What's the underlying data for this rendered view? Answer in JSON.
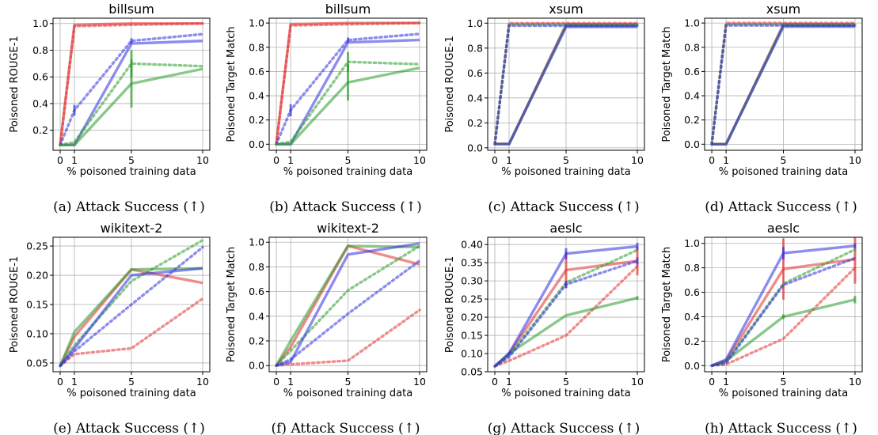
{
  "chart_data": [
    {
      "type": "line",
      "title": "billsum",
      "xlabel": "% poisoned training data",
      "ylabel": "Poisoned ROUGE-1",
      "caption": "(a) Attack Success (↑)",
      "xlim": [
        -0.5,
        10.5
      ],
      "ylim": [
        0.05,
        1.04
      ],
      "x_ticks": [
        0,
        1,
        5,
        10
      ],
      "y_ticks": [
        0.2,
        0.4,
        0.6,
        0.8,
        1.0
      ],
      "y_tick_labels": [
        "0.2",
        "0.4",
        "0.6",
        "0.8",
        "1.0"
      ],
      "grid": true,
      "series": [
        {
          "color": "#e03030",
          "style": "solid",
          "x": [
            0,
            1,
            5,
            10
          ],
          "y": [
            0.09,
            0.99,
            1.0,
            1.0
          ]
        },
        {
          "color": "#e03030",
          "style": "dotted",
          "x": [
            0,
            1,
            5,
            10
          ],
          "y": [
            0.09,
            0.98,
            0.99,
            1.0
          ]
        },
        {
          "color": "#3030e0",
          "style": "solid",
          "x": [
            0,
            1,
            5,
            10
          ],
          "y": [
            0.09,
            0.09,
            0.85,
            0.87
          ]
        },
        {
          "color": "#3030e0",
          "style": "dotted",
          "x": [
            0,
            1,
            5,
            10
          ],
          "y": [
            0.09,
            0.35,
            0.87,
            0.92
          ],
          "err": [
            0,
            0.04,
            0.02,
            0
          ]
        },
        {
          "color": "#2a9a2a",
          "style": "solid",
          "x": [
            0,
            1,
            5,
            10
          ],
          "y": [
            0.09,
            0.09,
            0.55,
            0.66
          ],
          "err": [
            0,
            0,
            0.18,
            0
          ]
        },
        {
          "color": "#2a9a2a",
          "style": "dotted",
          "x": [
            0,
            1,
            5,
            10
          ],
          "y": [
            0.09,
            0.11,
            0.7,
            0.68
          ],
          "err": [
            0,
            0,
            0.1,
            0
          ]
        }
      ]
    },
    {
      "type": "line",
      "title": "billsum",
      "xlabel": "% poisoned training data",
      "ylabel": "Poisoned Target Match",
      "caption": "(b) Attack Success (↑)",
      "xlim": [
        -0.5,
        10.5
      ],
      "ylim": [
        -0.05,
        1.04
      ],
      "x_ticks": [
        0,
        1,
        5,
        10
      ],
      "y_ticks": [
        0.0,
        0.2,
        0.4,
        0.6,
        0.8,
        1.0
      ],
      "y_tick_labels": [
        "0.0",
        "0.2",
        "0.4",
        "0.6",
        "0.8",
        "1.0"
      ],
      "grid": true,
      "series": [
        {
          "color": "#e03030",
          "style": "solid",
          "x": [
            0,
            1,
            5,
            10
          ],
          "y": [
            0.0,
            0.99,
            1.0,
            1.0
          ]
        },
        {
          "color": "#e03030",
          "style": "dotted",
          "x": [
            0,
            1,
            5,
            10
          ],
          "y": [
            0.0,
            0.98,
            0.99,
            1.0
          ]
        },
        {
          "color": "#3030e0",
          "style": "solid",
          "x": [
            0,
            1,
            5,
            10
          ],
          "y": [
            0.0,
            0.0,
            0.84,
            0.86
          ]
        },
        {
          "color": "#3030e0",
          "style": "dotted",
          "x": [
            0,
            1,
            5,
            10
          ],
          "y": [
            0.0,
            0.28,
            0.86,
            0.91
          ],
          "err": [
            0,
            0.05,
            0.02,
            0
          ]
        },
        {
          "color": "#2a9a2a",
          "style": "solid",
          "x": [
            0,
            1,
            5,
            10
          ],
          "y": [
            0.0,
            0.0,
            0.51,
            0.63
          ],
          "err": [
            0,
            0,
            0.15,
            0
          ]
        },
        {
          "color": "#2a9a2a",
          "style": "dotted",
          "x": [
            0,
            1,
            5,
            10
          ],
          "y": [
            0.0,
            0.02,
            0.68,
            0.66
          ],
          "err": [
            0,
            0,
            0.08,
            0
          ]
        }
      ]
    },
    {
      "type": "line",
      "title": "xsum",
      "xlabel": "% poisoned training data",
      "ylabel": "Poisoned ROUGE-1",
      "caption": "(c) Attack Success (↑)",
      "xlim": [
        -0.5,
        10.5
      ],
      "ylim": [
        -0.02,
        1.04
      ],
      "x_ticks": [
        0,
        1,
        5,
        10
      ],
      "y_ticks": [
        0.0,
        0.2,
        0.4,
        0.6,
        0.8,
        1.0
      ],
      "y_tick_labels": [
        "0.0",
        "0.2",
        "0.4",
        "0.6",
        "0.8",
        "1.0"
      ],
      "grid": true,
      "series": [
        {
          "color": "#e03030",
          "style": "solid",
          "x": [
            0,
            1,
            5,
            10
          ],
          "y": [
            0.03,
            0.03,
            0.99,
            0.99
          ]
        },
        {
          "color": "#e03030",
          "style": "dotted",
          "x": [
            0,
            1,
            5,
            10
          ],
          "y": [
            0.03,
            1.0,
            1.0,
            1.0
          ]
        },
        {
          "color": "#2a9a2a",
          "style": "solid",
          "x": [
            0,
            1,
            5,
            10
          ],
          "y": [
            0.03,
            0.03,
            0.98,
            0.98
          ]
        },
        {
          "color": "#2a9a2a",
          "style": "dotted",
          "x": [
            0,
            1,
            5,
            10
          ],
          "y": [
            0.03,
            0.99,
            0.99,
            0.99
          ]
        },
        {
          "color": "#3030e0",
          "style": "solid",
          "x": [
            0,
            1,
            5,
            10
          ],
          "y": [
            0.03,
            0.03,
            0.97,
            0.97
          ]
        },
        {
          "color": "#3030e0",
          "style": "dotted",
          "x": [
            0,
            1,
            5,
            10
          ],
          "y": [
            0.03,
            0.98,
            0.98,
            0.98
          ]
        }
      ]
    },
    {
      "type": "line",
      "title": "xsum",
      "xlabel": "% poisoned training data",
      "ylabel": "Poisoned Target Match",
      "caption": "(d) Attack Success (↑)",
      "xlim": [
        -0.5,
        10.5
      ],
      "ylim": [
        -0.05,
        1.04
      ],
      "x_ticks": [
        0,
        1,
        5,
        10
      ],
      "y_ticks": [
        0.0,
        0.2,
        0.4,
        0.6,
        0.8,
        1.0
      ],
      "y_tick_labels": [
        "0.0",
        "0.2",
        "0.4",
        "0.6",
        "0.8",
        "1.0"
      ],
      "grid": true,
      "series": [
        {
          "color": "#e03030",
          "style": "solid",
          "x": [
            0,
            1,
            5,
            10
          ],
          "y": [
            0.0,
            0.0,
            0.99,
            0.99
          ]
        },
        {
          "color": "#e03030",
          "style": "dotted",
          "x": [
            0,
            1,
            5,
            10
          ],
          "y": [
            0.0,
            1.0,
            1.0,
            1.0
          ]
        },
        {
          "color": "#2a9a2a",
          "style": "solid",
          "x": [
            0,
            1,
            5,
            10
          ],
          "y": [
            0.0,
            0.0,
            0.98,
            0.98
          ]
        },
        {
          "color": "#2a9a2a",
          "style": "dotted",
          "x": [
            0,
            1,
            5,
            10
          ],
          "y": [
            0.0,
            0.99,
            0.99,
            0.99
          ]
        },
        {
          "color": "#3030e0",
          "style": "solid",
          "x": [
            0,
            1,
            5,
            10
          ],
          "y": [
            0.0,
            0.0,
            0.97,
            0.97
          ]
        },
        {
          "color": "#3030e0",
          "style": "dotted",
          "x": [
            0,
            1,
            5,
            10
          ],
          "y": [
            0.0,
            0.98,
            0.98,
            0.98
          ]
        }
      ]
    },
    {
      "type": "line",
      "title": "wikitext-2",
      "xlabel": "% poisoned training data",
      "ylabel": "Poisoned ROUGE-1",
      "caption": "(e) Attack Success (↑)",
      "xlim": [
        -0.5,
        10.5
      ],
      "ylim": [
        0.035,
        0.265
      ],
      "x_ticks": [
        0,
        1,
        5,
        10
      ],
      "y_ticks": [
        0.05,
        0.1,
        0.15,
        0.2,
        0.25
      ],
      "y_tick_labels": [
        "0.05",
        "0.10",
        "0.15",
        "0.20",
        "0.25"
      ],
      "grid": true,
      "series": [
        {
          "color": "#e03030",
          "style": "solid",
          "x": [
            0,
            1,
            5,
            10
          ],
          "y": [
            0.045,
            0.095,
            0.21,
            0.187
          ]
        },
        {
          "color": "#e03030",
          "style": "dotted",
          "x": [
            0,
            1,
            5,
            10
          ],
          "y": [
            0.045,
            0.065,
            0.075,
            0.16
          ]
        },
        {
          "color": "#2a9a2a",
          "style": "solid",
          "x": [
            0,
            1,
            5,
            10
          ],
          "y": [
            0.045,
            0.103,
            0.21,
            0.212
          ]
        },
        {
          "color": "#2a9a2a",
          "style": "dotted",
          "x": [
            0,
            1,
            5,
            10
          ],
          "y": [
            0.045,
            0.08,
            0.19,
            0.26
          ]
        },
        {
          "color": "#3030e0",
          "style": "solid",
          "x": [
            0,
            1,
            5,
            10
          ],
          "y": [
            0.045,
            0.075,
            0.2,
            0.212
          ]
        },
        {
          "color": "#3030e0",
          "style": "dotted",
          "x": [
            0,
            1,
            5,
            10
          ],
          "y": [
            0.045,
            0.07,
            0.15,
            0.248
          ]
        }
      ]
    },
    {
      "type": "line",
      "title": "wikitext-2",
      "xlabel": "% poisoned training data",
      "ylabel": "Poisoned Target Match",
      "caption": "(f) Attack Success (↑)",
      "xlim": [
        -0.5,
        10.5
      ],
      "ylim": [
        -0.05,
        1.04
      ],
      "x_ticks": [
        0,
        1,
        5,
        10
      ],
      "y_ticks": [
        0.0,
        0.2,
        0.4,
        0.6,
        0.8,
        1.0
      ],
      "y_tick_labels": [
        "0.0",
        "0.2",
        "0.4",
        "0.6",
        "0.8",
        "1.0"
      ],
      "grid": true,
      "series": [
        {
          "color": "#e03030",
          "style": "solid",
          "x": [
            0,
            1,
            5,
            10
          ],
          "y": [
            0.0,
            0.15,
            0.97,
            0.82
          ]
        },
        {
          "color": "#e03030",
          "style": "dotted",
          "x": [
            0,
            1,
            5,
            10
          ],
          "y": [
            0.0,
            0.01,
            0.04,
            0.45
          ]
        },
        {
          "color": "#2a9a2a",
          "style": "solid",
          "x": [
            0,
            1,
            5,
            10
          ],
          "y": [
            0.0,
            0.2,
            0.97,
            0.96
          ]
        },
        {
          "color": "#2a9a2a",
          "style": "dotted",
          "x": [
            0,
            1,
            5,
            10
          ],
          "y": [
            0.0,
            0.12,
            0.61,
            0.97
          ]
        },
        {
          "color": "#3030e0",
          "style": "solid",
          "x": [
            0,
            1,
            5,
            10
          ],
          "y": [
            0.0,
            0.03,
            0.9,
            0.99
          ]
        },
        {
          "color": "#3030e0",
          "style": "dotted",
          "x": [
            0,
            1,
            5,
            10
          ],
          "y": [
            0.0,
            0.05,
            0.42,
            0.85
          ]
        }
      ]
    },
    {
      "type": "line",
      "title": "aeslc",
      "xlabel": "% poisoned training data",
      "ylabel": "Poisoned ROUGE-1",
      "caption": "(g) Attack Success (↑)",
      "xlim": [
        -0.5,
        10.5
      ],
      "ylim": [
        0.05,
        0.42
      ],
      "x_ticks": [
        0,
        1,
        5,
        10
      ],
      "y_ticks": [
        0.05,
        0.1,
        0.15,
        0.2,
        0.25,
        0.3,
        0.35,
        0.4
      ],
      "y_tick_labels": [
        "0.05",
        "0.10",
        "0.15",
        "0.20",
        "0.25",
        "0.30",
        "0.35",
        "0.40"
      ],
      "grid": true,
      "series": [
        {
          "color": "#e03030",
          "style": "solid",
          "x": [
            0,
            1,
            5,
            10
          ],
          "y": [
            0.065,
            0.1,
            0.33,
            0.355
          ],
          "err": [
            0,
            0,
            0.05,
            0.04
          ]
        },
        {
          "color": "#e03030",
          "style": "dotted",
          "x": [
            0,
            1,
            5,
            10
          ],
          "y": [
            0.065,
            0.08,
            0.15,
            0.34
          ]
        },
        {
          "color": "#2a9a2a",
          "style": "solid",
          "x": [
            0,
            1,
            5,
            10
          ],
          "y": [
            0.065,
            0.1,
            0.205,
            0.253
          ],
          "err": [
            0,
            0,
            0,
            0.005
          ]
        },
        {
          "color": "#2a9a2a",
          "style": "dotted",
          "x": [
            0,
            1,
            5,
            10
          ],
          "y": [
            0.065,
            0.095,
            0.295,
            0.385
          ]
        },
        {
          "color": "#3030e0",
          "style": "solid",
          "x": [
            0,
            1,
            5,
            10
          ],
          "y": [
            0.065,
            0.1,
            0.375,
            0.395
          ],
          "err": [
            0,
            0.005,
            0.015,
            0.01
          ]
        },
        {
          "color": "#3030e0",
          "style": "dotted",
          "x": [
            0,
            1,
            5,
            10
          ],
          "y": [
            0.065,
            0.09,
            0.29,
            0.355
          ],
          "err": [
            0,
            0,
            0.01,
            0.01
          ]
        }
      ]
    },
    {
      "type": "line",
      "title": "aeslc",
      "xlabel": "% poisoned training data",
      "ylabel": "Poisoned Target Match",
      "caption": "(h) Attack Success (↑)",
      "xlim": [
        -0.5,
        10.5
      ],
      "ylim": [
        -0.05,
        1.05
      ],
      "x_ticks": [
        0,
        1,
        5,
        10
      ],
      "y_ticks": [
        0.0,
        0.2,
        0.4,
        0.6,
        0.8,
        1.0
      ],
      "y_tick_labels": [
        "0.0",
        "0.2",
        "0.4",
        "0.6",
        "0.8",
        "1.0"
      ],
      "grid": true,
      "series": [
        {
          "color": "#e03030",
          "style": "solid",
          "x": [
            0,
            1,
            5,
            10
          ],
          "y": [
            0.0,
            0.04,
            0.79,
            0.87
          ],
          "err": [
            0,
            0,
            0.25,
            0.2
          ]
        },
        {
          "color": "#e03030",
          "style": "dotted",
          "x": [
            0,
            1,
            5,
            10
          ],
          "y": [
            0.0,
            0.01,
            0.22,
            0.8
          ]
        },
        {
          "color": "#2a9a2a",
          "style": "solid",
          "x": [
            0,
            1,
            5,
            10
          ],
          "y": [
            0.0,
            0.04,
            0.4,
            0.54
          ],
          "err": [
            0,
            0,
            0.02,
            0.03
          ]
        },
        {
          "color": "#2a9a2a",
          "style": "dotted",
          "x": [
            0,
            1,
            5,
            10
          ],
          "y": [
            0.0,
            0.03,
            0.67,
            0.95
          ]
        },
        {
          "color": "#3030e0",
          "style": "solid",
          "x": [
            0,
            1,
            5,
            10
          ],
          "y": [
            0.0,
            0.05,
            0.92,
            0.98
          ],
          "err": [
            0,
            0,
            0.05,
            0.02
          ]
        },
        {
          "color": "#3030e0",
          "style": "dotted",
          "x": [
            0,
            1,
            5,
            10
          ],
          "y": [
            0.0,
            0.02,
            0.66,
            0.88
          ]
        }
      ]
    }
  ]
}
